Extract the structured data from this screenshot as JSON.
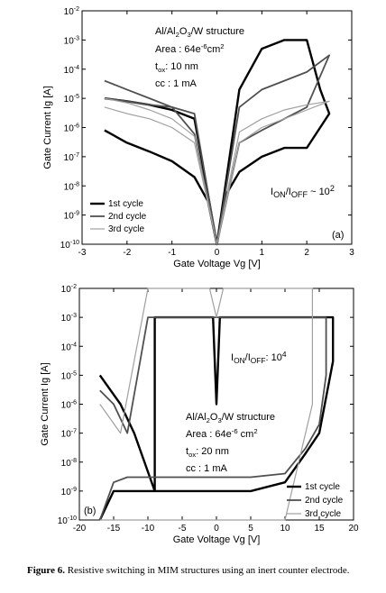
{
  "chart_data": [
    {
      "type": "line",
      "panel_label": "(a)",
      "xlabel": "Gate Voltage Vg [V]",
      "ylabel": "Gate Current Ig [A]",
      "xlim": [
        -3,
        3
      ],
      "ylim": [
        1e-10,
        0.01
      ],
      "yscale": "log",
      "xticks": [
        "-3",
        "-2",
        "-1",
        "0",
        "1",
        "2",
        "3"
      ],
      "yticks": [
        "10-10",
        "10-9",
        "10-8",
        "10-7",
        "10-6",
        "10-5",
        "10-4",
        "10-3",
        "10-2"
      ],
      "legend_position": "bottom-left",
      "annotations": {
        "structure": "Al/Al2O3/W structure",
        "area": "Area : 64e-6cm2",
        "tox": "tox: 10 nm",
        "cc": "cc : 1 mA",
        "ratio": "ION/IOFF ~ 102"
      },
      "series": [
        {
          "name": "1st cycle",
          "color": "#000000",
          "x": [
            -2.5,
            -2.0,
            -1.5,
            -1.0,
            -0.5,
            -0.2,
            0.0,
            0.2,
            0.5,
            1.0,
            1.5,
            2.0,
            2.5,
            2.3,
            2.0,
            1.5,
            1.0,
            0.5,
            0.0,
            -0.5,
            -1.0,
            -1.5,
            -2.0,
            -2.5
          ],
          "y": [
            8e-07,
            3e-07,
            1.5e-07,
            7e-08,
            2e-08,
            3e-09,
            1e-10,
            5e-09,
            3e-08,
            1e-07,
            2e-07,
            2e-07,
            3e-06,
            2e-05,
            0.001,
            0.001,
            0.0005,
            2e-05,
            1e-10,
            2e-06,
            4e-06,
            6e-06,
            8e-06,
            1e-05
          ]
        },
        {
          "name": "2nd cycle",
          "color": "#505050",
          "x": [
            -2.5,
            -2.0,
            -1.5,
            -1.0,
            -0.5,
            0.0,
            0.5,
            1.0,
            1.5,
            2.0,
            2.5,
            2.0,
            1.5,
            1.0,
            0.5,
            0.0,
            -0.5,
            -1.0,
            -1.5,
            -2.0,
            -2.5
          ],
          "y": [
            4e-05,
            2e-05,
            1e-05,
            5e-06,
            6e-07,
            1e-10,
            3e-07,
            8e-07,
            2e-06,
            5e-06,
            0.0003,
            8e-05,
            4e-05,
            2e-05,
            5e-06,
            1e-10,
            3e-06,
            5e-06,
            6e-06,
            8e-06,
            1e-05
          ]
        },
        {
          "name": "3rd cycle",
          "color": "#a0a0a0",
          "x": [
            -2.5,
            -2.0,
            -1.5,
            -1.0,
            -0.5,
            0.0,
            0.5,
            1.0,
            1.5,
            2.0,
            2.5,
            2.0,
            1.5,
            1.0,
            0.5,
            0.0,
            -0.5,
            -1.0,
            -1.5,
            -2.0,
            -2.5
          ],
          "y": [
            1e-05,
            7e-06,
            4e-06,
            2e-06,
            5e-07,
            1e-10,
            3e-07,
            1e-06,
            2e-06,
            4e-06,
            8e-06,
            6e-06,
            4e-06,
            2e-06,
            7e-07,
            1e-10,
            3e-07,
            1e-06,
            2e-06,
            3e-06,
            5e-06
          ]
        }
      ]
    },
    {
      "type": "line",
      "panel_label": "(b)",
      "xlabel": "Gate Voltage Vg [V]",
      "ylabel": "Gate Current Ig [A]",
      "xlim": [
        -20,
        20
      ],
      "ylim": [
        1e-10,
        0.01
      ],
      "yscale": "log",
      "xticks": [
        "-20",
        "-15",
        "-10",
        "-5",
        "0",
        "5",
        "10",
        "15",
        "20"
      ],
      "yticks": [
        "10-10",
        "10-9",
        "10-8",
        "10-7",
        "10-6",
        "10-5",
        "10-4",
        "10-3",
        "10-2"
      ],
      "legend_position": "bottom-right",
      "annotations": {
        "ratio": "ION/IOFF: 104",
        "structure": "Al/Al2O3/W structure",
        "area": "Area : 64e-6 cm2",
        "tox": "tox: 20 nm",
        "cc": "cc : 1 mA"
      },
      "series": [
        {
          "name": "1st cycle",
          "color": "#000000",
          "x": [
            -17,
            -15,
            -13,
            -10,
            -5,
            0,
            5,
            10,
            13,
            15,
            17,
            17,
            15,
            10,
            5,
            0.5,
            0,
            -0.5,
            -5,
            -9,
            -9,
            -12,
            -14,
            -17
          ],
          "y": [
            1e-10,
            1e-09,
            1e-09,
            1e-09,
            1e-09,
            1e-09,
            1e-09,
            2e-09,
            2e-08,
            1e-07,
            3e-05,
            0.001,
            0.001,
            0.001,
            0.001,
            0.001,
            1e-06,
            0.001,
            0.001,
            0.001,
            1e-09,
            1e-07,
            1e-06,
            1e-05
          ]
        },
        {
          "name": "2nd cycle",
          "color": "#505050",
          "x": [
            -17,
            -15,
            -13,
            -10,
            -5,
            0,
            5,
            10,
            13,
            15,
            16,
            16,
            10,
            0,
            -10,
            -13,
            -15,
            -17
          ],
          "y": [
            1e-10,
            2e-09,
            3e-09,
            3e-09,
            3e-09,
            3e-09,
            3e-09,
            4e-09,
            3e-08,
            2e-07,
            1e-05,
            0.001,
            0.001,
            0.001,
            0.001,
            1e-07,
            1e-06,
            3e-06
          ]
        },
        {
          "name": "3rd cycle",
          "color": "#a0a0a0",
          "x": [
            -17,
            -15,
            -10,
            -5,
            0,
            5,
            10,
            14,
            14,
            10,
            5,
            1,
            0,
            -1,
            -5,
            -10,
            -14,
            -17
          ],
          "y": [
            1e-10,
            1e-10,
            1e-10,
            1e-10,
            1e-10,
            1e-10,
            1e-10,
            1e-06,
            0.01,
            0.01,
            0.01,
            0.01,
            0.001,
            0.01,
            0.01,
            0.01,
            1e-07,
            1e-06
          ]
        }
      ]
    }
  ],
  "caption": {
    "label": "Figure 6.",
    "text": " Resistive switching in MIM structures using an inert counter electrode."
  }
}
